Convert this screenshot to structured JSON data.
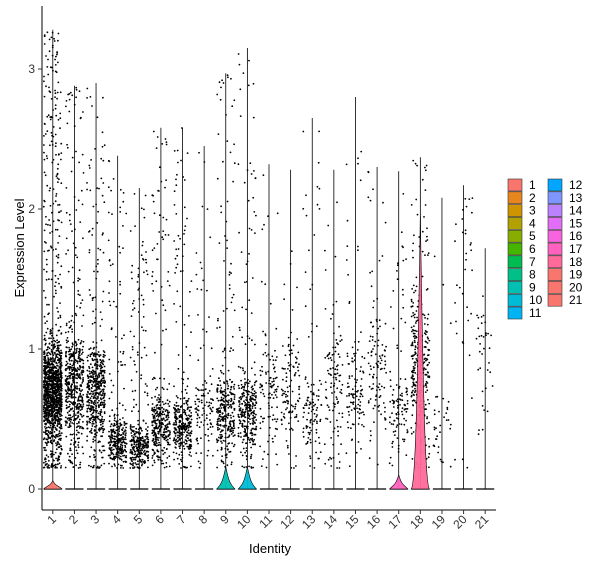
{
  "chart_data": {
    "type": "violin",
    "xlabel": "Identity",
    "ylabel": "Expression Level",
    "ylim": [
      -0.15,
      3.45
    ],
    "yticks": [
      0,
      1,
      2,
      3
    ],
    "grid": false,
    "legend_position": "right",
    "legend_columns": 2,
    "categories": [
      "1",
      "2",
      "3",
      "4",
      "5",
      "6",
      "7",
      "8",
      "9",
      "10",
      "11",
      "12",
      "13",
      "14",
      "15",
      "16",
      "17",
      "18",
      "19",
      "20",
      "21"
    ],
    "colors": [
      "#F8766D",
      "#E7851E",
      "#D09400",
      "#B2A100",
      "#89AC00",
      "#45B500",
      "#00BC51",
      "#00C087",
      "#00C0B2",
      "#00BCD6",
      "#00B3F2",
      "#00A6FF",
      "#7F96FF",
      "#BC81FF",
      "#E26EF7",
      "#F863DF",
      "#FF62BF",
      "#FF6A9A",
      "#F8766D",
      "#F8766D",
      "#F8766D"
    ],
    "series": [
      {
        "category": "1",
        "max": 3.28,
        "violin_peak": 0.06,
        "violin_width": 0.42,
        "point_density": "very high"
      },
      {
        "category": "2",
        "max": 2.88,
        "violin_peak": 0.0,
        "violin_width": 0.0,
        "point_density": "high"
      },
      {
        "category": "3",
        "max": 2.9,
        "violin_peak": 0.0,
        "violin_width": 0.0,
        "point_density": "high"
      },
      {
        "category": "4",
        "max": 2.38,
        "violin_peak": 0.0,
        "violin_width": 0.0,
        "point_density": "medium"
      },
      {
        "category": "5",
        "max": 2.15,
        "violin_peak": 0.0,
        "violin_width": 0.0,
        "point_density": "medium"
      },
      {
        "category": "6",
        "max": 2.58,
        "violin_peak": 0.0,
        "violin_width": 0.0,
        "point_density": "medium"
      },
      {
        "category": "7",
        "max": 2.58,
        "violin_peak": 0.0,
        "violin_width": 0.0,
        "point_density": "medium"
      },
      {
        "category": "8",
        "max": 2.45,
        "violin_peak": 0.0,
        "violin_width": 0.0,
        "point_density": "low"
      },
      {
        "category": "9",
        "max": 2.97,
        "violin_peak": 0.16,
        "violin_width": 0.42,
        "point_density": "medium"
      },
      {
        "category": "10",
        "max": 3.15,
        "violin_peak": 0.16,
        "violin_width": 0.42,
        "point_density": "medium"
      },
      {
        "category": "11",
        "max": 2.32,
        "violin_peak": 0.0,
        "violin_width": 0.0,
        "point_density": "low"
      },
      {
        "category": "12",
        "max": 2.28,
        "violin_peak": 0.0,
        "violin_width": 0.0,
        "point_density": "low"
      },
      {
        "category": "13",
        "max": 2.65,
        "violin_peak": 0.0,
        "violin_width": 0.0,
        "point_density": "low"
      },
      {
        "category": "14",
        "max": 2.28,
        "violin_peak": 0.0,
        "violin_width": 0.0,
        "point_density": "low"
      },
      {
        "category": "15",
        "max": 2.8,
        "violin_peak": 0.0,
        "violin_width": 0.0,
        "point_density": "low"
      },
      {
        "category": "16",
        "max": 2.3,
        "violin_peak": 0.0,
        "violin_width": 0.0,
        "point_density": "low"
      },
      {
        "category": "17",
        "max": 2.27,
        "violin_peak": 0.1,
        "violin_width": 0.42,
        "point_density": "low"
      },
      {
        "category": "18",
        "max": 2.37,
        "violin_peak": 1.95,
        "violin_width": 0.42,
        "point_density": "medium"
      },
      {
        "category": "19",
        "max": 2.08,
        "violin_peak": 0.0,
        "violin_width": 0.0,
        "point_density": "very low"
      },
      {
        "category": "20",
        "max": 2.17,
        "violin_peak": 0.0,
        "violin_width": 0.0,
        "point_density": "very low"
      },
      {
        "category": "21",
        "max": 1.72,
        "violin_peak": 0.0,
        "violin_width": 0.0,
        "point_density": "very low"
      }
    ]
  }
}
